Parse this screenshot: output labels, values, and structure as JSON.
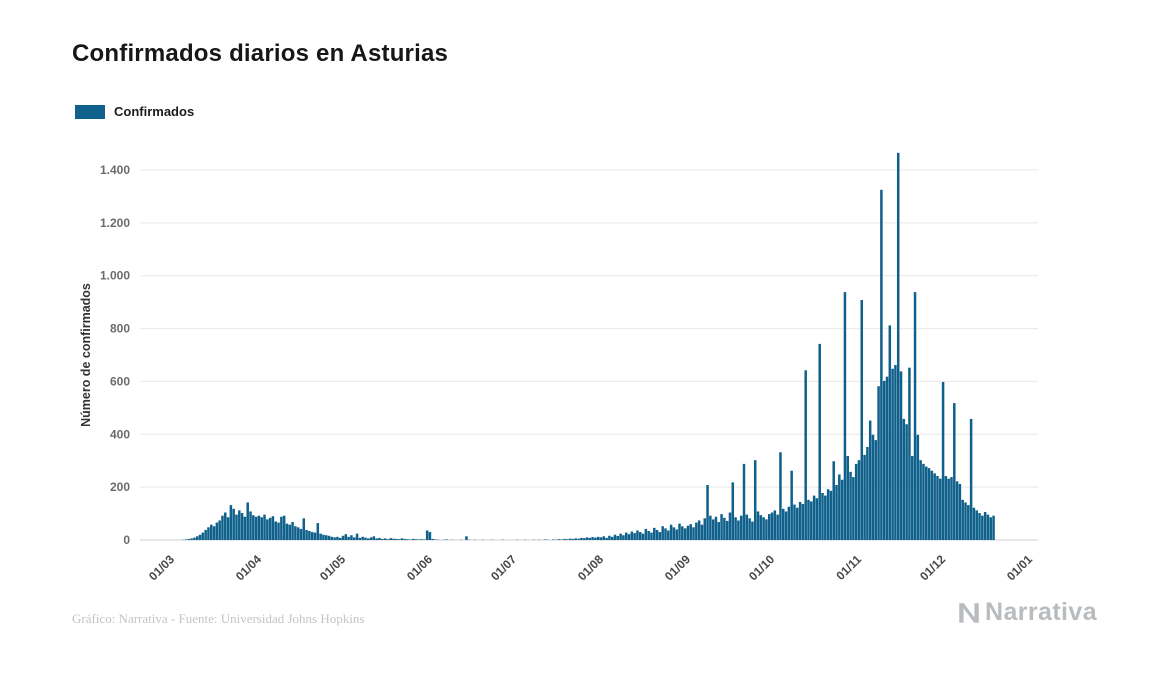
{
  "title": "Confirmados diarios en Asturias",
  "legend": {
    "label": "Confirmados"
  },
  "caption": "Gráfico: Narrativa - Fuente: Universidad Johns Hopkins",
  "logo_text": "Narrativa",
  "colors": {
    "bar": "#0f608b",
    "grid": "#e8e8e8",
    "baseline": "#cfcfcf"
  },
  "chart_data": {
    "type": "bar",
    "title": "Confirmados diarios en Asturias",
    "xlabel": "",
    "ylabel": "Número de confirmados",
    "legend": "Confirmados",
    "legend_position": "top-left",
    "grid": "horizontal",
    "bar_color": "#0f608b",
    "ylim": [
      0,
      1400
    ],
    "x_unit": "day",
    "yticks": [
      {
        "value": 0,
        "label": "0"
      },
      {
        "value": 200,
        "label": "200"
      },
      {
        "value": 400,
        "label": "400"
      },
      {
        "value": 600,
        "label": "600"
      },
      {
        "value": 800,
        "label": "800"
      },
      {
        "value": 1000,
        "label": "1.000"
      },
      {
        "value": 1200,
        "label": "1.200"
      },
      {
        "value": 1400,
        "label": "1.400"
      }
    ],
    "xticks": [
      {
        "day": 0,
        "label": "01/03"
      },
      {
        "day": 31,
        "label": "01/04"
      },
      {
        "day": 61,
        "label": "01/05"
      },
      {
        "day": 92,
        "label": "01/06"
      },
      {
        "day": 122,
        "label": "01/07"
      },
      {
        "day": 153,
        "label": "01/08"
      },
      {
        "day": 184,
        "label": "01/09"
      },
      {
        "day": 214,
        "label": "01/10"
      },
      {
        "day": 245,
        "label": "01/11"
      },
      {
        "day": 275,
        "label": "01/12"
      },
      {
        "day": 306,
        "label": "01/01"
      }
    ],
    "values": [
      0,
      0,
      0,
      0,
      1,
      2,
      4,
      6,
      9,
      14,
      20,
      28,
      38,
      48,
      58,
      52,
      66,
      74,
      92,
      104,
      86,
      132,
      118,
      96,
      112,
      102,
      88,
      142,
      108,
      94,
      88,
      92,
      86,
      96,
      78,
      84,
      90,
      70,
      66,
      88,
      92,
      62,
      58,
      68,
      52,
      48,
      42,
      82,
      38,
      34,
      30,
      28,
      64,
      24,
      20,
      18,
      16,
      12,
      10,
      12,
      8,
      16,
      22,
      12,
      18,
      10,
      24,
      8,
      12,
      9,
      6,
      10,
      14,
      6,
      8,
      4,
      6,
      3,
      7,
      5,
      4,
      3,
      6,
      4,
      3,
      2,
      4,
      3,
      2,
      3,
      2,
      36,
      30,
      4,
      2,
      1,
      0,
      1,
      2,
      0,
      1,
      0,
      0,
      1,
      0,
      14,
      1,
      0,
      1,
      0,
      0,
      1,
      0,
      0,
      1,
      0,
      0,
      0,
      1,
      0,
      0,
      0,
      0,
      1,
      0,
      0,
      1,
      0,
      0,
      1,
      0,
      1,
      0,
      2,
      1,
      0,
      2,
      1,
      3,
      2,
      4,
      3,
      5,
      4,
      6,
      5,
      8,
      7,
      10,
      8,
      11,
      9,
      12,
      10,
      14,
      8,
      16,
      12,
      20,
      15,
      24,
      18,
      28,
      22,
      32,
      26,
      36,
      30,
      24,
      42,
      34,
      28,
      46,
      38,
      30,
      52,
      44,
      36,
      58,
      48,
      40,
      62,
      52,
      44,
      54,
      60,
      48,
      66,
      74,
      58,
      82,
      208,
      92,
      78,
      88,
      68,
      98,
      84,
      72,
      104,
      218,
      86,
      74,
      92,
      288,
      96,
      82,
      70,
      302,
      108,
      94,
      86,
      78,
      98,
      104,
      112,
      96,
      332,
      118,
      108,
      126,
      262,
      134,
      122,
      144,
      136,
      642,
      152,
      146,
      168,
      158,
      742,
      178,
      168,
      192,
      186,
      298,
      208,
      248,
      228,
      938,
      318,
      258,
      238,
      288,
      302,
      908,
      322,
      352,
      452,
      398,
      378,
      582,
      1325,
      602,
      618,
      812,
      648,
      662,
      1465,
      638,
      458,
      438,
      652,
      318,
      938,
      398,
      302,
      288,
      278,
      272,
      262,
      252,
      242,
      232,
      598,
      242,
      232,
      238,
      518,
      222,
      212,
      152,
      142,
      132,
      458,
      122,
      112,
      102,
      92,
      106,
      96,
      86,
      92,
      0,
      0,
      0,
      0,
      0,
      0,
      0,
      0,
      0,
      0,
      0,
      0
    ]
  }
}
